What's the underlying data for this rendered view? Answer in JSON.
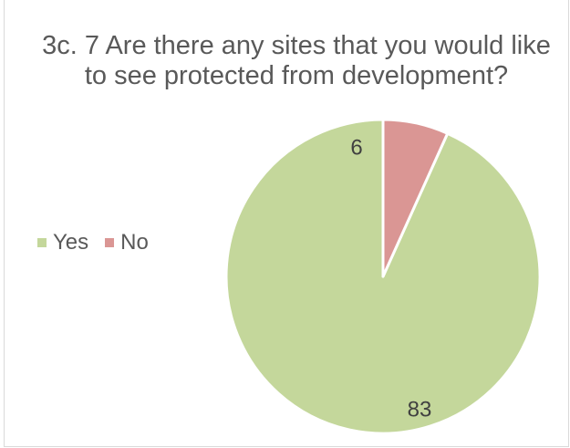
{
  "chart_data": {
    "type": "pie",
    "title": "3c. 7  Are there any sites that you would like to see protected from development?",
    "categories": [
      "Yes",
      "No"
    ],
    "values": [
      83,
      6
    ],
    "data_labels": [
      "83",
      "6"
    ],
    "colors": [
      "#c4d79b",
      "#da9694"
    ],
    "legend_position": "left"
  }
}
